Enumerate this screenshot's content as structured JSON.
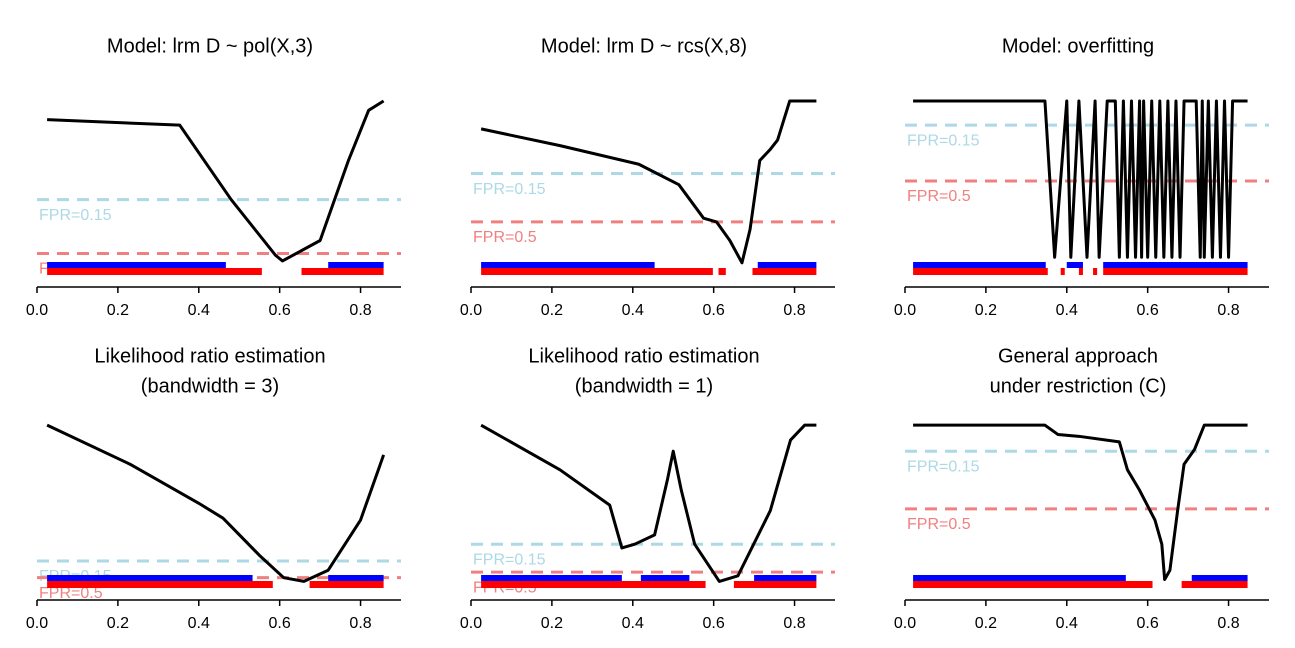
{
  "chart_data": [
    {
      "type": "line",
      "title": [
        "Model: lrm D ~ pol(X,3)"
      ],
      "x": [
        0.025,
        0.353,
        0.48,
        0.59,
        0.607,
        0.7,
        0.77,
        0.82,
        0.857
      ],
      "values": [
        0.9,
        0.87,
        0.47,
        0.17,
        0.14,
        0.25,
        0.68,
        0.95,
        1.0
      ],
      "color": "#000000",
      "xlim": [
        0,
        0.9
      ],
      "ylim": [
        0,
        1
      ],
      "xticks": [
        {
          "value": 0,
          "label": "0.0"
        },
        0.2,
        0.4,
        0.6,
        0.8
      ],
      "thresholds": [
        {
          "label": "FPR=0.15",
          "value": 0.47,
          "color": "#add8e6"
        },
        {
          "label": "FPR=0.5",
          "value": 0.18,
          "color": "#f08080"
        }
      ],
      "bands": [
        {
          "color": "#0000ff",
          "intervals": [
            [
              0.025,
              0.467
            ],
            [
              0.72,
              0.857
            ]
          ]
        },
        {
          "color": "#ff0000",
          "intervals": [
            [
              0.025,
              0.556
            ],
            [
              0.654,
              0.857
            ]
          ]
        }
      ]
    },
    {
      "type": "line",
      "title": [
        "Model: lrm D ~ rcs(X,8)"
      ],
      "x": [
        0.025,
        0.22,
        0.415,
        0.514,
        0.575,
        0.607,
        0.64,
        0.67,
        0.69,
        0.714,
        0.74,
        0.758,
        0.788,
        0.854
      ],
      "values": [
        0.85,
        0.76,
        0.66,
        0.55,
        0.37,
        0.35,
        0.25,
        0.13,
        0.31,
        0.68,
        0.74,
        0.79,
        1.0,
        1.0
      ],
      "color": "#000000",
      "xlim": [
        0,
        0.9
      ],
      "ylim": [
        0,
        1
      ],
      "xticks": [
        {
          "value": 0,
          "label": "0.0"
        },
        0.2,
        0.4,
        0.6,
        0.8
      ],
      "thresholds": [
        {
          "label": "FPR=0.15",
          "value": 0.61,
          "color": "#add8e6"
        },
        {
          "label": "FPR=0.5",
          "value": 0.35,
          "color": "#f08080"
        }
      ],
      "bands": [
        {
          "color": "#0000ff",
          "intervals": [
            [
              0.025,
              0.454
            ],
            [
              0.709,
              0.854
            ]
          ]
        },
        {
          "color": "#ff0000",
          "intervals": [
            [
              0.025,
              0.598
            ],
            [
              0.612,
              0.63
            ],
            [
              0.696,
              0.854
            ]
          ]
        }
      ]
    },
    {
      "type": "line",
      "title": [
        "Model: overfitting"
      ],
      "x": [
        0.02,
        0.346,
        0.37,
        0.4,
        0.41,
        0.43,
        0.45,
        0.47,
        0.48,
        0.5,
        0.52,
        0.53,
        0.54,
        0.55,
        0.56,
        0.57,
        0.58,
        0.585,
        0.59,
        0.6,
        0.61,
        0.62,
        0.63,
        0.64,
        0.65,
        0.66,
        0.67,
        0.68,
        0.69,
        0.7,
        0.72,
        0.73,
        0.735,
        0.74,
        0.75,
        0.76,
        0.77,
        0.78,
        0.79,
        0.8,
        0.81,
        0.847
      ],
      "values": [
        1.0,
        1.0,
        0.16,
        1.0,
        0.16,
        1.0,
        0.16,
        1.0,
        0.16,
        1.0,
        1.0,
        0.16,
        1.0,
        0.16,
        1.0,
        0.16,
        1.0,
        0.16,
        1.0,
        0.16,
        1.0,
        0.16,
        1.0,
        0.16,
        1.0,
        0.16,
        1.0,
        0.16,
        1.0,
        1.0,
        1.0,
        0.16,
        1.0,
        0.16,
        1.0,
        0.16,
        1.0,
        0.16,
        1.0,
        0.16,
        1.0,
        1.0
      ],
      "color": "#000000",
      "xlim": [
        0,
        0.9
      ],
      "ylim": [
        0,
        1
      ],
      "xticks": [
        {
          "value": 0,
          "label": "0.0"
        },
        0.2,
        0.4,
        0.6,
        0.8
      ],
      "thresholds": [
        {
          "label": "FPR=0.15",
          "value": 0.87,
          "color": "#add8e6"
        },
        {
          "label": "FPR=0.5",
          "value": 0.57,
          "color": "#f08080"
        }
      ],
      "bands": [
        {
          "color": "#0000ff",
          "intervals": [
            [
              0.02,
              0.348
            ],
            [
              0.4,
              0.44
            ],
            [
              0.49,
              0.847
            ]
          ]
        },
        {
          "color": "#ff0000",
          "intervals": [
            [
              0.02,
              0.353
            ],
            [
              0.385,
              0.395
            ],
            [
              0.43,
              0.44
            ],
            [
              0.465,
              0.475
            ],
            [
              0.49,
              0.847
            ]
          ]
        }
      ]
    },
    {
      "type": "line",
      "title": [
        "Likelihood ratio estimation",
        "(bandwidth = 3)"
      ],
      "x": [
        0.025,
        0.23,
        0.4,
        0.46,
        0.55,
        0.61,
        0.66,
        0.72,
        0.8,
        0.857
      ],
      "values": [
        0.94,
        0.73,
        0.52,
        0.44,
        0.24,
        0.12,
        0.1,
        0.16,
        0.43,
        0.78
      ],
      "color": "#000000",
      "xlim": [
        0,
        0.9
      ],
      "ylim": [
        0,
        1
      ],
      "xticks": [
        {
          "value": 0,
          "label": "0.0"
        },
        0.2,
        0.4,
        0.6,
        0.8
      ],
      "thresholds": [
        {
          "label": "FPR=0.15",
          "value": 0.21,
          "color": "#add8e6"
        },
        {
          "label": "FPR=0.5",
          "value": 0.12,
          "color": "#f08080"
        }
      ],
      "bands": [
        {
          "color": "#0000ff",
          "intervals": [
            [
              0.025,
              0.533
            ],
            [
              0.72,
              0.857
            ]
          ]
        },
        {
          "color": "#ff0000",
          "intervals": [
            [
              0.025,
              0.583
            ],
            [
              0.674,
              0.857
            ]
          ]
        }
      ]
    },
    {
      "type": "line",
      "title": [
        "Likelihood ratio estimation",
        "(bandwidth = 1)"
      ],
      "x": [
        0.025,
        0.22,
        0.343,
        0.373,
        0.405,
        0.454,
        0.486,
        0.5,
        0.52,
        0.553,
        0.614,
        0.66,
        0.74,
        0.79,
        0.825,
        0.854
      ],
      "values": [
        0.94,
        0.7,
        0.51,
        0.28,
        0.3,
        0.35,
        0.65,
        0.8,
        0.59,
        0.3,
        0.1,
        0.13,
        0.48,
        0.86,
        0.94,
        0.94
      ],
      "color": "#000000",
      "xlim": [
        0,
        0.9
      ],
      "ylim": [
        0,
        1
      ],
      "xticks": [
        {
          "value": 0,
          "label": "0.0"
        },
        0.2,
        0.4,
        0.6,
        0.8
      ],
      "thresholds": [
        {
          "label": "FPR=0.15",
          "value": 0.3,
          "color": "#add8e6"
        },
        {
          "label": "FPR=0.5",
          "value": 0.15,
          "color": "#f08080"
        }
      ],
      "bands": [
        {
          "color": "#0000ff",
          "intervals": [
            [
              0.025,
              0.373
            ],
            [
              0.42,
              0.54
            ],
            [
              0.7,
              0.854
            ]
          ]
        },
        {
          "color": "#ff0000",
          "intervals": [
            [
              0.025,
              0.58
            ],
            [
              0.65,
              0.854
            ]
          ]
        }
      ]
    },
    {
      "type": "line",
      "title": [
        "General approach",
        "under restriction (C)"
      ],
      "x": [
        0.02,
        0.346,
        0.378,
        0.43,
        0.53,
        0.55,
        0.58,
        0.618,
        0.635,
        0.642,
        0.655,
        0.674,
        0.69,
        0.716,
        0.74,
        0.847
      ],
      "values": [
        0.94,
        0.94,
        0.89,
        0.88,
        0.85,
        0.7,
        0.59,
        0.43,
        0.3,
        0.11,
        0.16,
        0.48,
        0.73,
        0.81,
        0.94,
        0.94
      ],
      "color": "#000000",
      "xlim": [
        0,
        0.9
      ],
      "ylim": [
        0,
        1
      ],
      "xticks": [
        {
          "value": 0,
          "label": "0.0"
        },
        0.2,
        0.4,
        0.6,
        0.8
      ],
      "thresholds": [
        {
          "label": "FPR=0.15",
          "value": 0.8,
          "color": "#add8e6"
        },
        {
          "label": "FPR=0.5",
          "value": 0.49,
          "color": "#f08080"
        }
      ],
      "bands": [
        {
          "color": "#0000ff",
          "intervals": [
            [
              0.02,
              0.546
            ],
            [
              0.709,
              0.847
            ]
          ]
        },
        {
          "color": "#ff0000",
          "intervals": [
            [
              0.02,
              0.612
            ],
            [
              0.684,
              0.847
            ]
          ]
        }
      ]
    }
  ]
}
